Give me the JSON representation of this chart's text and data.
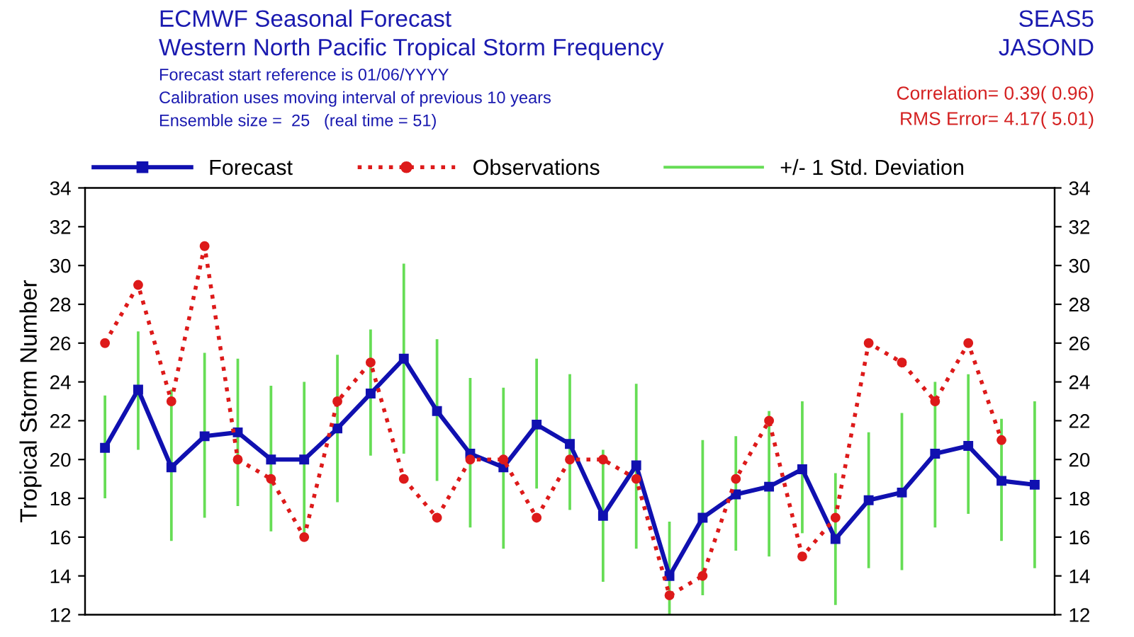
{
  "chart_data": {
    "type": "line",
    "title": "ECMWF Seasonal Forecast",
    "subtitle": "Western North Pacific Tropical Storm Frequency",
    "annotations": [
      "Forecast start reference is 01/06/YYYY",
      "Calibration uses moving interval of previous 10 years",
      "Ensemble size =  25   (real time = 51)",
      "SEAS5",
      "JASOND",
      "Correlation= 0.39( 0.96)",
      "RMS Error= 4.17( 5.01)"
    ],
    "ylabel": "Tropical Storm Number",
    "categories": [
      null,
      null,
      null,
      null,
      null,
      null,
      null,
      null,
      null,
      null,
      null,
      null,
      null,
      null,
      null,
      null,
      null,
      null,
      null,
      null,
      null,
      null,
      null,
      null,
      null,
      null,
      null,
      null,
      null
    ],
    "series": [
      {
        "name": "Forecast",
        "color": "#1010b0",
        "marker": "square",
        "line_style": "solid",
        "values": [
          20.6,
          23.6,
          19.6,
          21.2,
          21.4,
          20.0,
          20.0,
          21.6,
          23.4,
          25.2,
          22.5,
          20.3,
          19.6,
          21.8,
          20.8,
          17.1,
          19.7,
          14.0,
          17.0,
          18.2,
          18.6,
          19.5,
          15.9,
          17.9,
          18.3,
          20.3,
          20.7,
          18.9,
          18.7
        ]
      },
      {
        "name": "Observations",
        "color": "#dd1a1a",
        "marker": "circle",
        "line_style": "dotted",
        "values": [
          26,
          29,
          23,
          31,
          20,
          19,
          16,
          23,
          25,
          19,
          17,
          20,
          20,
          17,
          20,
          20,
          19,
          13,
          14,
          19,
          22,
          15,
          17,
          26,
          25,
          23,
          26,
          21,
          null
        ]
      },
      {
        "name": "+/- 1 Std. Deviation",
        "type": "bar",
        "color": "#66dd55",
        "base": [
          18.0,
          20.5,
          15.8,
          17.0,
          17.6,
          16.3,
          16.0,
          17.8,
          20.2,
          20.3,
          18.9,
          16.5,
          15.4,
          18.5,
          17.4,
          13.7,
          15.4,
          12.0,
          13.0,
          15.3,
          15.0,
          16.2,
          12.5,
          14.4,
          14.3,
          16.5,
          17.2,
          15.8,
          14.4
        ],
        "values": [
          5.3,
          6.1,
          7.8,
          8.5,
          7.6,
          7.5,
          8.0,
          7.6,
          6.5,
          9.8,
          7.3,
          7.7,
          8.3,
          6.7,
          7.0,
          6.8,
          8.5,
          4.8,
          8.0,
          5.9,
          7.5,
          6.8,
          6.8,
          7.0,
          8.1,
          7.5,
          7.2,
          6.3,
          8.6
        ]
      }
    ],
    "ylim": [
      12,
      34
    ],
    "yticks": [
      12,
      14,
      16,
      18,
      20,
      22,
      24,
      26,
      28,
      30,
      32,
      34
    ],
    "y2lim": [
      12,
      34
    ],
    "y2ticks": [
      12,
      14,
      16,
      18,
      20,
      22,
      24,
      26,
      28,
      30,
      32,
      34
    ],
    "tick_labels": "y",
    "grid": false,
    "legend": "top"
  }
}
